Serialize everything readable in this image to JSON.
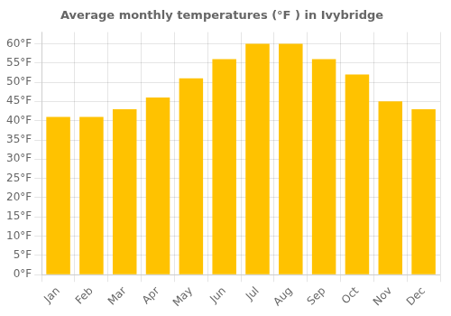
{
  "chart_data": {
    "type": "bar",
    "title": "Average monthly temperatures (°F ) in Ivybridge",
    "categories": [
      "Jan",
      "Feb",
      "Mar",
      "Apr",
      "May",
      "Jun",
      "Jul",
      "Aug",
      "Sep",
      "Oct",
      "Nov",
      "Dec"
    ],
    "values": [
      41,
      41,
      43,
      46,
      51,
      56,
      60,
      60,
      56,
      52,
      45,
      43
    ],
    "color": "#FFC200",
    "ylim": [
      0,
      63
    ],
    "yticks": [
      {
        "value": 0,
        "label": "0°F"
      },
      {
        "value": 5,
        "label": "5°F"
      },
      {
        "value": 10,
        "label": "10°F"
      },
      {
        "value": 15,
        "label": "15°F"
      },
      {
        "value": 20,
        "label": "20°F"
      },
      {
        "value": 25,
        "label": "25°F"
      },
      {
        "value": 30,
        "label": "30°F"
      },
      {
        "value": 35,
        "label": "35°F"
      },
      {
        "value": 40,
        "label": "40°F"
      },
      {
        "value": 45,
        "label": "45°F"
      },
      {
        "value": 50,
        "label": "50°F"
      },
      {
        "value": 55,
        "label": "55°F"
      },
      {
        "value": 60,
        "label": "60°F"
      }
    ],
    "grid": true
  }
}
